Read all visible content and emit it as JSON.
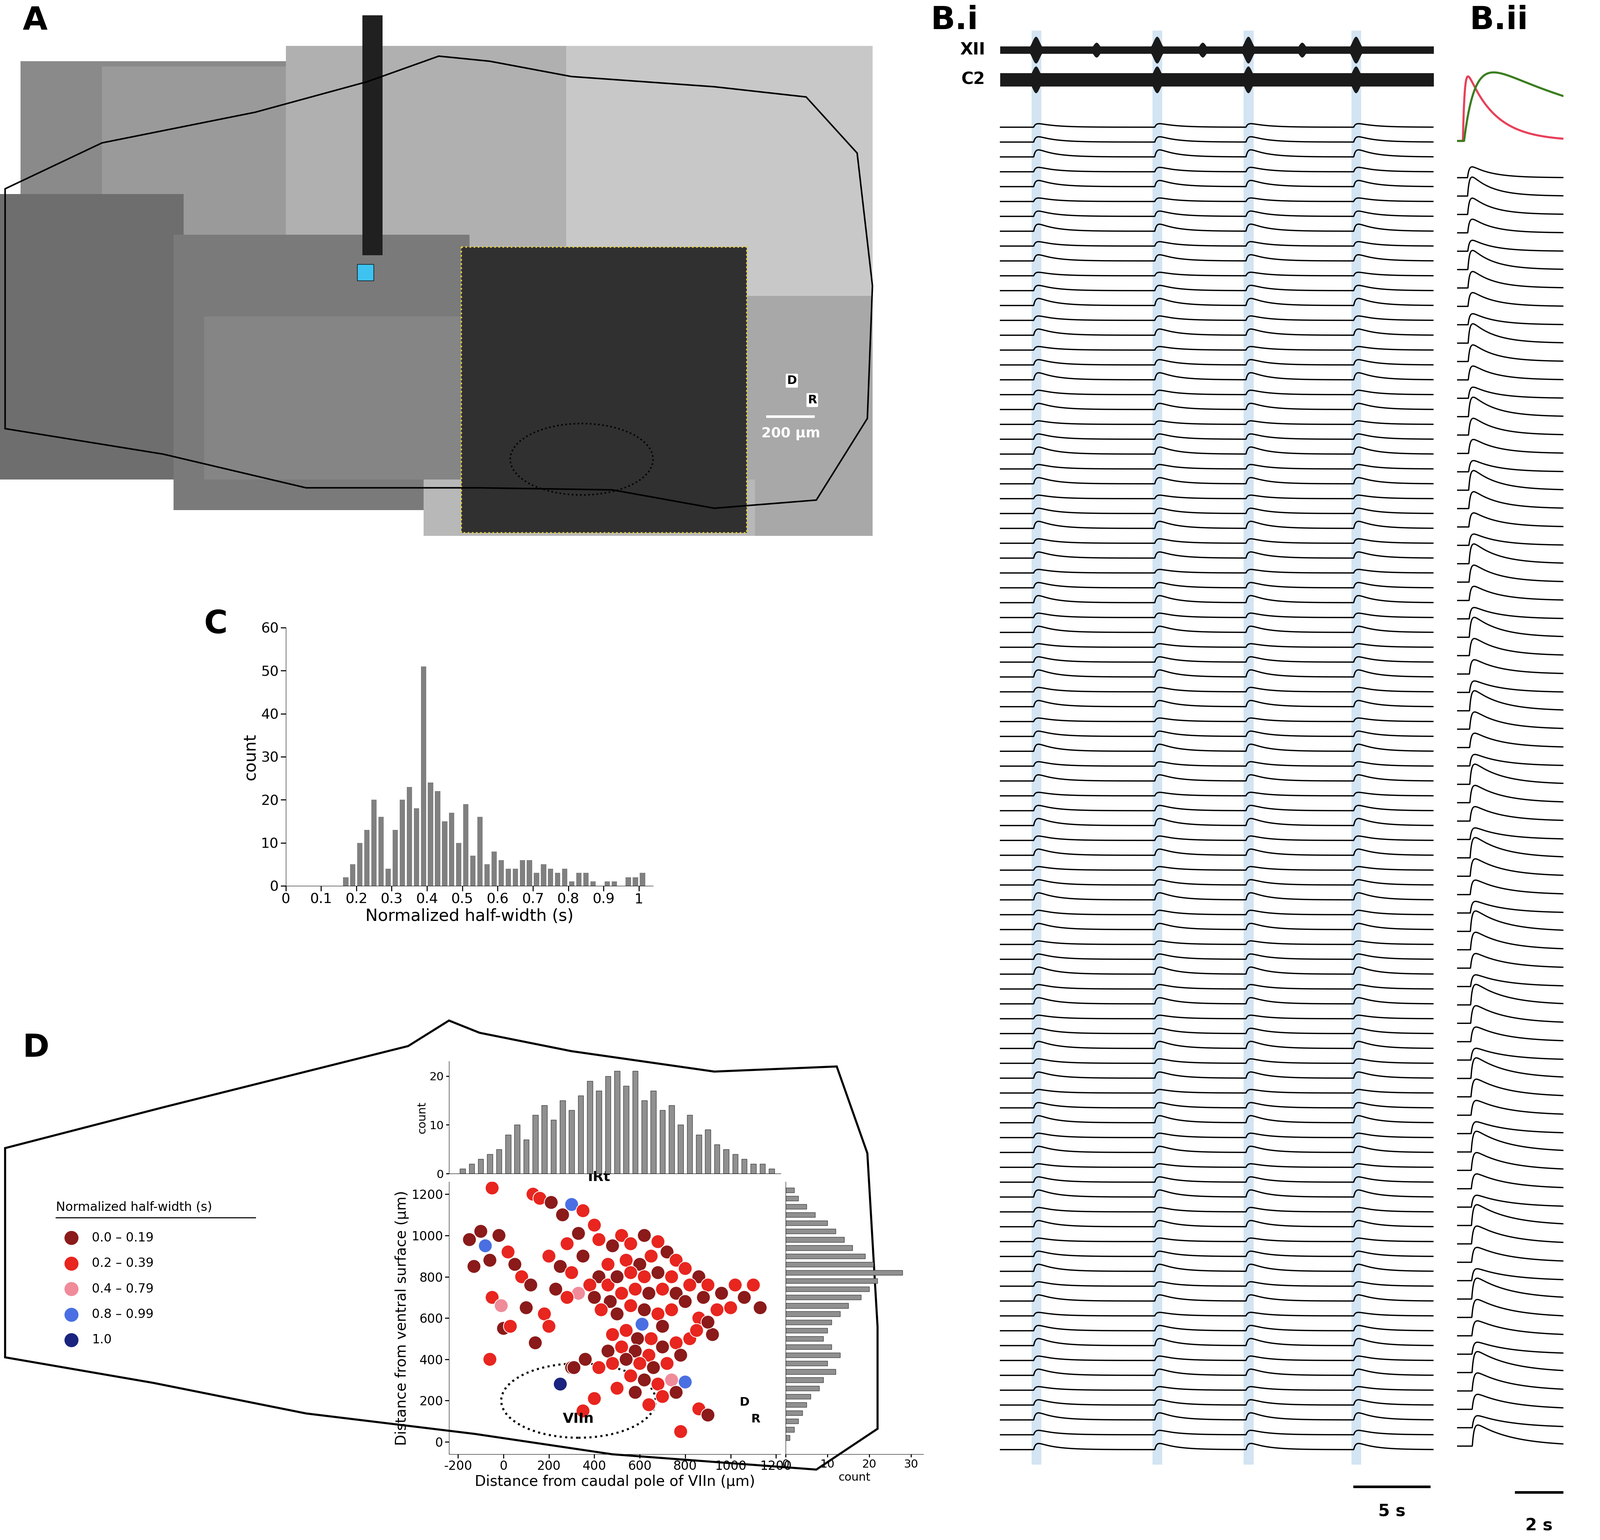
{
  "chart_data": [
    {
      "type": "image",
      "label": "A",
      "scale_bar": {
        "value": 200,
        "label": "200 µm"
      },
      "orientation_labels": [
        "D",
        "R"
      ]
    },
    {
      "type": "traces",
      "label": "B.i",
      "signal_labels": [
        "XII",
        "C2"
      ],
      "n_traces": 90,
      "window_s": 29,
      "events_s": [
        2.4,
        10.5,
        16.6,
        23.8
      ],
      "scale_bar": {
        "value": 5,
        "label": "5 s"
      }
    },
    {
      "type": "traces",
      "label": "B.ii",
      "n_traces": 70,
      "window_s": 4.6,
      "colors": [
        "#e8405a",
        "#3a7d1e"
      ],
      "scale_bar": {
        "value": 2,
        "label": "2 s"
      }
    },
    {
      "type": "histogram",
      "label": "C",
      "xlabel": "Normalized half-width (s)",
      "ylabel": "count",
      "color": "#808080",
      "bins": [
        0.16,
        0.18,
        0.2,
        0.22,
        0.24,
        0.26,
        0.28,
        0.3,
        0.32,
        0.34,
        0.36,
        0.38,
        0.4,
        0.42,
        0.44,
        0.46,
        0.48,
        0.5,
        0.52,
        0.54,
        0.56,
        0.58,
        0.6,
        0.62,
        0.64,
        0.66,
        0.68,
        0.7,
        0.72,
        0.74,
        0.76,
        0.78,
        0.8,
        0.82,
        0.84,
        0.86,
        0.88,
        0.9,
        0.92,
        0.94,
        0.96,
        0.98,
        1.0,
        1.02
      ],
      "counts": [
        2,
        5,
        10,
        13,
        20,
        16,
        4,
        13,
        20,
        23,
        18,
        51,
        24,
        22,
        15,
        17,
        10,
        19,
        7,
        16,
        5,
        8,
        6,
        4,
        4,
        6,
        6,
        3,
        5,
        4,
        3,
        4,
        1,
        3,
        3,
        1,
        0,
        1,
        1,
        0,
        2,
        2,
        3
      ],
      "xlim": [
        0,
        1.04
      ],
      "ylim": [
        0,
        60
      ],
      "xticks": [
        0,
        0.1,
        0.2,
        0.3,
        0.4,
        0.5,
        0.6,
        0.7,
        0.8,
        0.9,
        1
      ],
      "yticks": [
        0,
        10,
        20,
        30,
        40,
        50,
        60
      ]
    },
    {
      "type": "scatter",
      "label": "D",
      "xlabel": "Distance from caudal pole of VIIn (µm)",
      "ylabel": "Distance from ventral surface (µm)",
      "xlim": [
        -240,
        1220
      ],
      "ylim": [
        -60,
        1260
      ],
      "xticks": [
        -200,
        0,
        200,
        400,
        600,
        800,
        1000,
        1200
      ],
      "yticks": [
        0,
        200,
        400,
        600,
        800,
        1000,
        1200
      ],
      "annotations": [
        "IRt",
        "VIIn"
      ],
      "orientation_labels": [
        "D",
        "R"
      ],
      "legend_title": "Normalized half-width (s)",
      "classes": [
        {
          "name": "0.0 – 0.19",
          "color": "#8b1a1a"
        },
        {
          "name": "0.2 – 0.39",
          "color": "#e8251f"
        },
        {
          "name": "0.4 – 0.79",
          "color": "#f08b9a"
        },
        {
          "name": "0.8 – 0.99",
          "color": "#4a6fe3"
        },
        {
          "name": "1.0",
          "color": "#1a237e"
        }
      ],
      "points": [
        [
          -150,
          980,
          0
        ],
        [
          -100,
          1020,
          0
        ],
        [
          -80,
          950,
          3
        ],
        [
          -60,
          880,
          0
        ],
        [
          -20,
          1000,
          0
        ],
        [
          20,
          920,
          1
        ],
        [
          50,
          860,
          0
        ],
        [
          -130,
          850,
          0
        ],
        [
          80,
          800,
          1
        ],
        [
          120,
          760,
          0
        ],
        [
          -50,
          700,
          1
        ],
        [
          -10,
          660,
          2
        ],
        [
          100,
          650,
          0
        ],
        [
          0,
          550,
          0
        ],
        [
          -60,
          400,
          1
        ],
        [
          -50,
          1230,
          1
        ],
        [
          130,
          1200,
          1
        ],
        [
          160,
          1180,
          1
        ],
        [
          210,
          1160,
          0
        ],
        [
          300,
          1150,
          3
        ],
        [
          260,
          1100,
          0
        ],
        [
          350,
          1120,
          1
        ],
        [
          400,
          1050,
          1
        ],
        [
          330,
          1010,
          0
        ],
        [
          280,
          960,
          1
        ],
        [
          200,
          900,
          1
        ],
        [
          250,
          850,
          0
        ],
        [
          300,
          820,
          1
        ],
        [
          350,
          900,
          0
        ],
        [
          420,
          980,
          1
        ],
        [
          480,
          950,
          0
        ],
        [
          520,
          1000,
          1
        ],
        [
          560,
          960,
          1
        ],
        [
          620,
          1000,
          0
        ],
        [
          680,
          970,
          1
        ],
        [
          720,
          920,
          0
        ],
        [
          760,
          880,
          1
        ],
        [
          650,
          900,
          1
        ],
        [
          600,
          860,
          0
        ],
        [
          540,
          880,
          1
        ],
        [
          460,
          860,
          1
        ],
        [
          420,
          800,
          0
        ],
        [
          380,
          760,
          1
        ],
        [
          330,
          720,
          2
        ],
        [
          280,
          700,
          1
        ],
        [
          230,
          740,
          0
        ],
        [
          180,
          620,
          1
        ],
        [
          400,
          700,
          0
        ],
        [
          460,
          760,
          1
        ],
        [
          500,
          800,
          0
        ],
        [
          560,
          820,
          1
        ],
        [
          620,
          800,
          1
        ],
        [
          680,
          820,
          0
        ],
        [
          740,
          800,
          1
        ],
        [
          800,
          840,
          1
        ],
        [
          860,
          800,
          0
        ],
        [
          900,
          760,
          1
        ],
        [
          960,
          720,
          0
        ],
        [
          1020,
          760,
          1
        ],
        [
          1100,
          760,
          1
        ],
        [
          1130,
          650,
          0
        ],
        [
          1060,
          700,
          0
        ],
        [
          940,
          640,
          1
        ],
        [
          880,
          700,
          0
        ],
        [
          820,
          760,
          1
        ],
        [
          760,
          720,
          0
        ],
        [
          700,
          740,
          1
        ],
        [
          640,
          720,
          0
        ],
        [
          580,
          740,
          1
        ],
        [
          520,
          720,
          1
        ],
        [
          470,
          680,
          0
        ],
        [
          430,
          640,
          1
        ],
        [
          500,
          620,
          0
        ],
        [
          560,
          660,
          1
        ],
        [
          620,
          640,
          0
        ],
        [
          610,
          570,
          3
        ],
        [
          680,
          620,
          1
        ],
        [
          740,
          640,
          1
        ],
        [
          800,
          680,
          0
        ],
        [
          860,
          600,
          1
        ],
        [
          920,
          520,
          0
        ],
        [
          700,
          560,
          0
        ],
        [
          650,
          500,
          1
        ],
        [
          590,
          500,
          0
        ],
        [
          540,
          540,
          1
        ],
        [
          480,
          520,
          1
        ],
        [
          460,
          440,
          0
        ],
        [
          520,
          460,
          1
        ],
        [
          580,
          440,
          0
        ],
        [
          640,
          420,
          1
        ],
        [
          700,
          460,
          0
        ],
        [
          760,
          480,
          1
        ],
        [
          820,
          500,
          1
        ],
        [
          780,
          420,
          0
        ],
        [
          720,
          380,
          1
        ],
        [
          660,
          360,
          0
        ],
        [
          600,
          380,
          1
        ],
        [
          540,
          400,
          0
        ],
        [
          480,
          380,
          1
        ],
        [
          420,
          360,
          1
        ],
        [
          360,
          400,
          0
        ],
        [
          300,
          360,
          0
        ],
        [
          560,
          320,
          1
        ],
        [
          620,
          300,
          0
        ],
        [
          680,
          280,
          1
        ],
        [
          740,
          300,
          2
        ],
        [
          800,
          290,
          3
        ],
        [
          760,
          240,
          0
        ],
        [
          700,
          220,
          1
        ],
        [
          640,
          180,
          1
        ],
        [
          580,
          240,
          0
        ],
        [
          500,
          260,
          1
        ],
        [
          400,
          210,
          1
        ],
        [
          350,
          150,
          1
        ],
        [
          250,
          280,
          4
        ],
        [
          310,
          360,
          0
        ],
        [
          860,
          160,
          1
        ],
        [
          900,
          130,
          0
        ],
        [
          780,
          50,
          1
        ],
        [
          850,
          540,
          1
        ],
        [
          900,
          580,
          0
        ],
        [
          1000,
          650,
          1
        ],
        [
          30,
          560,
          1
        ],
        [
          140,
          480,
          0
        ],
        [
          200,
          560,
          1
        ]
      ],
      "top_hist": {
        "ylabel": "count",
        "ylim": [
          0,
          23
        ],
        "yticks": [
          0,
          10,
          20
        ],
        "color": "#909090",
        "bins": [
          -200,
          -160,
          -120,
          -80,
          -40,
          0,
          40,
          80,
          120,
          160,
          200,
          240,
          280,
          320,
          360,
          400,
          440,
          480,
          520,
          560,
          600,
          640,
          680,
          720,
          760,
          800,
          840,
          880,
          920,
          960,
          1000,
          1040,
          1080,
          1120,
          1160,
          1200
        ],
        "counts": [
          1,
          2,
          3,
          4,
          5,
          8,
          10,
          7,
          12,
          14,
          11,
          15,
          13,
          16,
          19,
          17,
          20,
          21,
          18,
          21,
          15,
          17,
          13,
          14,
          10,
          12,
          8,
          9,
          6,
          5,
          4,
          3,
          2,
          2,
          1
        ]
      },
      "right_hist": {
        "xlabel": "count",
        "xlim": [
          0,
          33
        ],
        "xticks": [
          0,
          10,
          20,
          30
        ],
        "color": "#909090",
        "orientation": "horizontal",
        "bins": [
          0,
          40,
          80,
          120,
          160,
          200,
          240,
          280,
          320,
          360,
          400,
          440,
          480,
          520,
          560,
          600,
          640,
          680,
          720,
          760,
          800,
          840,
          880,
          920,
          960,
          1000,
          1040,
          1080,
          1120,
          1160,
          1200,
          1240
        ],
        "counts": [
          1,
          2,
          3,
          4,
          5,
          6,
          8,
          9,
          12,
          10,
          13,
          11,
          9,
          10,
          11,
          13,
          15,
          18,
          20,
          22,
          28,
          21,
          19,
          16,
          14,
          12,
          10,
          7,
          5,
          3,
          2
        ]
      }
    }
  ]
}
